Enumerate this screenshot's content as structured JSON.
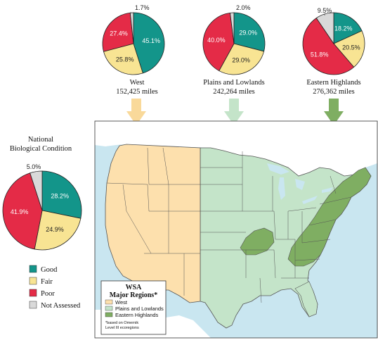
{
  "colors": {
    "good": "#13958a",
    "fair": "#f8e493",
    "poor": "#e42b47",
    "not_assessed": "#d9d9d9",
    "west_region": "#fde0ad",
    "plains_region": "#c4e4c9",
    "highlands_region": "#7fae62",
    "water": "#c9e6f0",
    "land_other": "#ffffff",
    "state_border": "#555555"
  },
  "chart_data": [
    {
      "type": "pie",
      "title": "West",
      "subtitle": "152,425 miles",
      "categories": [
        "Good",
        "Fair",
        "Poor",
        "Not Assessed"
      ],
      "values": [
        45.1,
        25.8,
        27.4,
        1.7
      ],
      "labels": [
        "45.1%",
        "25.8%",
        "27.4%",
        "1.7%"
      ]
    },
    {
      "type": "pie",
      "title": "Plains and Lowlands",
      "subtitle": "242,264 miles",
      "categories": [
        "Good",
        "Fair",
        "Poor",
        "Not Assessed"
      ],
      "values": [
        29.0,
        29.0,
        40.0,
        2.0
      ],
      "labels": [
        "29.0%",
        "29.0%",
        "40.0%",
        "2.0%"
      ]
    },
    {
      "type": "pie",
      "title": "Eastern Highlands",
      "subtitle": "276,362 miles",
      "categories": [
        "Good",
        "Fair",
        "Poor",
        "Not Assessed"
      ],
      "values": [
        18.2,
        20.5,
        51.8,
        9.5
      ],
      "labels": [
        "18.2%",
        "20.5%",
        "51.8%",
        "9.5%"
      ]
    },
    {
      "type": "pie",
      "title": "National Biological Condition",
      "categories": [
        "Good",
        "Fair",
        "Poor",
        "Not Assessed"
      ],
      "values": [
        28.2,
        24.9,
        41.9,
        5.0
      ],
      "labels": [
        "28.2%",
        "24.9%",
        "41.9%",
        "5.0%"
      ]
    }
  ],
  "national": {
    "title_line1": "National",
    "title_line2": "Biological Condition"
  },
  "legend": {
    "items": [
      {
        "label": "Good",
        "color_key": "good"
      },
      {
        "label": "Fair",
        "color_key": "fair"
      },
      {
        "label": "Poor",
        "color_key": "poor"
      },
      {
        "label": "Not Assessed",
        "color_key": "not_assessed"
      }
    ]
  },
  "map_legend": {
    "title_line1": "WSA",
    "title_line2": "Major Regions*",
    "items": [
      {
        "label": "West",
        "color_key": "west_region"
      },
      {
        "label": "Plains and Lowlands",
        "color_key": "plains_region"
      },
      {
        "label": "Eastern Highlands",
        "color_key": "highlands_region"
      }
    ],
    "note_line1": "*based on Omernik",
    "note_line2": "Level III ecoregions"
  }
}
